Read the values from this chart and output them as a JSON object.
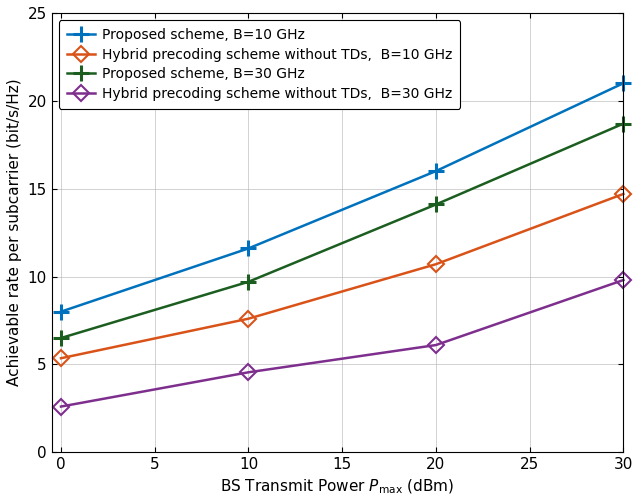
{
  "x": [
    0,
    10,
    20,
    30
  ],
  "series": [
    {
      "label": "Proposed scheme, B=10 GHz",
      "values": [
        8.0,
        11.6,
        16.0,
        21.0
      ],
      "color": "#0072BD",
      "marker_type": "plus",
      "linewidth": 1.8
    },
    {
      "label": "Hybrid precoding scheme without TDs,  B=10 GHz",
      "values": [
        5.35,
        7.6,
        10.7,
        14.7
      ],
      "color": "#D95319",
      "marker_type": "diamond",
      "linewidth": 1.8
    },
    {
      "label": "Proposed scheme, B=30 GHz",
      "values": [
        6.5,
        9.7,
        14.1,
        18.7
      ],
      "color": "#1B5E20",
      "marker_type": "plus",
      "linewidth": 1.8
    },
    {
      "label": "Hybrid precoding scheme without TDs,  B=30 GHz",
      "values": [
        2.6,
        4.55,
        6.1,
        9.8
      ],
      "color": "#7E2F8E",
      "marker_type": "diamond",
      "linewidth": 1.8
    }
  ],
  "xlabel": "BS Transmit Power $P_{\\mathrm{max}}$ (dBm)",
  "ylabel": "Achievable rate per subcarrier (bit/s/Hz)",
  "xlim": [
    -0.5,
    30
  ],
  "ylim": [
    0,
    25
  ],
  "xticks": [
    0,
    5,
    10,
    15,
    20,
    25,
    30
  ],
  "yticks": [
    0,
    5,
    10,
    15,
    20,
    25
  ],
  "grid": true,
  "legend_loc": "upper left",
  "label_fontsize": 11,
  "tick_fontsize": 11,
  "legend_fontsize": 10,
  "background_color": "#ffffff"
}
